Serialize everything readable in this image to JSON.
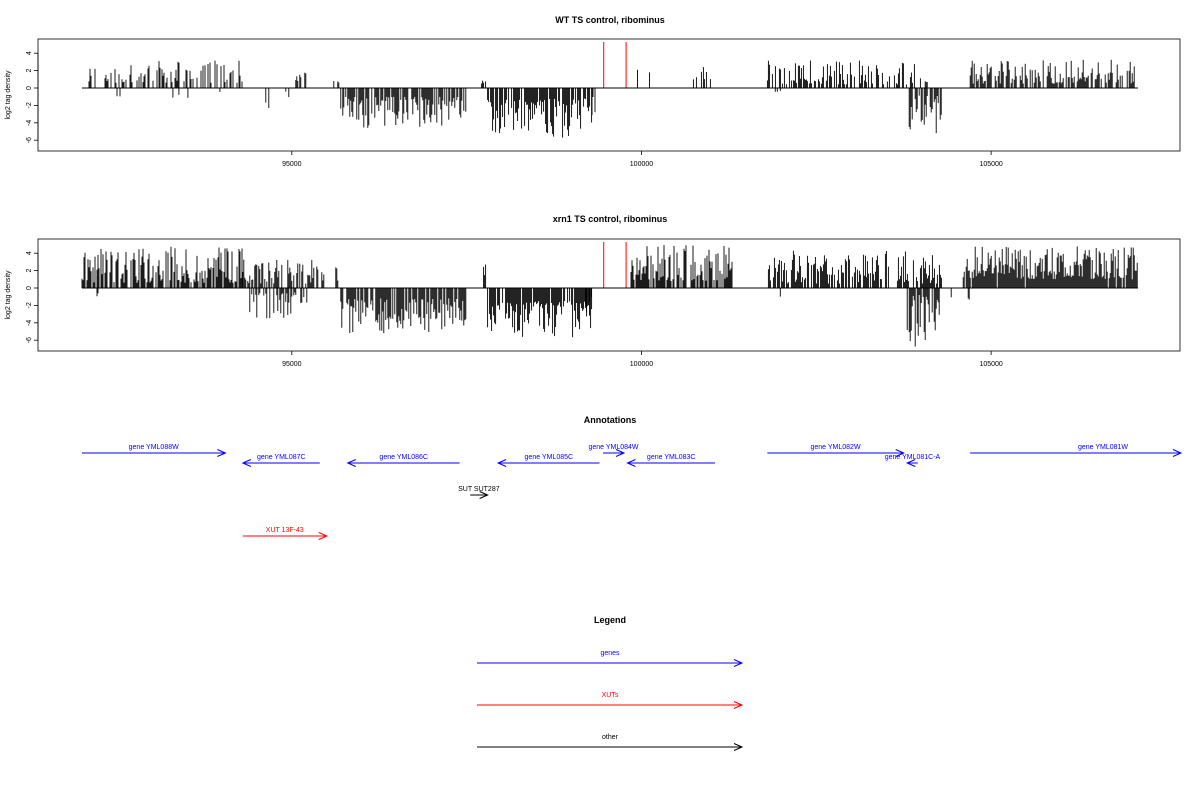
{
  "colors": {
    "gene": "#0000ff",
    "xut": "#ff0000",
    "other": "#000000",
    "marker": "#ff0000",
    "trace": "#000000"
  },
  "chart_data": [
    {
      "type": "bar",
      "title": "WT TS control, ribominus",
      "ylabel": "log2 tag density",
      "xlim": [
        91300,
        107600
      ],
      "ylim": [
        -7,
        5.5
      ],
      "x_ticks": [
        "95000",
        "100000",
        "105000"
      ],
      "x_tick_values": [
        95000,
        100000,
        105000
      ],
      "y_ticks": [
        "4",
        "2",
        "0",
        "-2",
        "-4",
        "-6"
      ],
      "y_tick_values": [
        4,
        2,
        0,
        -2,
        -4,
        -6
      ],
      "markers_x": [
        99460,
        99780
      ],
      "segments": [
        {
          "start": 92000,
          "end": 92050,
          "sign": -1,
          "lo": 0.5,
          "hi": 1.2,
          "density": 0.2,
          "seed": 1
        },
        {
          "start": 92100,
          "end": 94300,
          "sign": 1,
          "lo": 0.6,
          "hi": 3.2,
          "density": 0.45,
          "seed": 2
        },
        {
          "start": 92500,
          "end": 92560,
          "sign": -1,
          "lo": 0.4,
          "hi": 1.0,
          "density": 0.3,
          "seed": 3
        },
        {
          "start": 93300,
          "end": 93560,
          "sign": -1,
          "lo": 0.4,
          "hi": 1.5,
          "density": 0.25,
          "seed": 4
        },
        {
          "start": 93900,
          "end": 94000,
          "sign": -1,
          "lo": 0.4,
          "hi": 1.1,
          "density": 0.3,
          "seed": 5
        },
        {
          "start": 94600,
          "end": 94700,
          "sign": -1,
          "lo": 1.0,
          "hi": 2.8,
          "density": 0.3,
          "seed": 6
        },
        {
          "start": 94900,
          "end": 95000,
          "sign": -1,
          "lo": 0.3,
          "hi": 1.2,
          "density": 0.3,
          "seed": 7
        },
        {
          "start": 94900,
          "end": 95300,
          "sign": 1,
          "lo": 0.8,
          "hi": 2.1,
          "density": 0.25,
          "seed": 8
        },
        {
          "start": 95600,
          "end": 95700,
          "sign": 1,
          "lo": 0.5,
          "hi": 1.0,
          "density": 0.3,
          "seed": 9
        },
        {
          "start": 95700,
          "end": 97500,
          "sign": -1,
          "lo": 1.0,
          "hi": 4.6,
          "density": 0.7,
          "seed": 10
        },
        {
          "start": 97700,
          "end": 97800,
          "sign": 1,
          "lo": 0.5,
          "hi": 1.0,
          "density": 0.4,
          "seed": 11
        },
        {
          "start": 97800,
          "end": 99300,
          "sign": -1,
          "lo": 1.2,
          "hi": 5.8,
          "density": 0.8,
          "seed": 12
        },
        {
          "start": 99250,
          "end": 99350,
          "sign": -1,
          "lo": 1.0,
          "hi": 3.5,
          "density": 0.4,
          "seed": 13
        },
        {
          "start": 99900,
          "end": 100150,
          "sign": 1,
          "lo": 0.8,
          "hi": 2.2,
          "density": 0.2,
          "seed": 14
        },
        {
          "start": 100700,
          "end": 101000,
          "sign": 1,
          "lo": 1.0,
          "hi": 2.5,
          "density": 0.2,
          "seed": 15
        },
        {
          "start": 101800,
          "end": 104000,
          "sign": 1,
          "lo": 0.4,
          "hi": 3.3,
          "density": 0.55,
          "seed": 16
        },
        {
          "start": 101900,
          "end": 102000,
          "sign": -1,
          "lo": 0.3,
          "hi": 0.8,
          "density": 0.3,
          "seed": 17
        },
        {
          "start": 103800,
          "end": 104300,
          "sign": -1,
          "lo": 0.8,
          "hi": 5.4,
          "density": 0.7,
          "seed": 18
        },
        {
          "start": 104000,
          "end": 104100,
          "sign": 1,
          "lo": 0.6,
          "hi": 1.2,
          "density": 0.3,
          "seed": 19
        },
        {
          "start": 104700,
          "end": 107100,
          "sign": 1,
          "lo": 0.5,
          "hi": 3.3,
          "density": 0.7,
          "seed": 20
        }
      ]
    },
    {
      "type": "bar",
      "title": "xrn1 TS control, ribominus",
      "ylabel": "log2 tag density",
      "xlim": [
        91300,
        107600
      ],
      "ylim": [
        -7,
        5.5
      ],
      "x_ticks": [
        "95000",
        "100000",
        "105000"
      ],
      "x_tick_values": [
        95000,
        100000,
        105000
      ],
      "y_ticks": [
        "4",
        "2",
        "0",
        "-2",
        "-4",
        "-6"
      ],
      "y_tick_values": [
        4,
        2,
        0,
        -2,
        -4,
        -6
      ],
      "markers_x": [
        99460,
        99780
      ],
      "segments": [
        {
          "start": 92000,
          "end": 94300,
          "sign": 1,
          "lo": 0.6,
          "hi": 4.8,
          "density": 0.75,
          "seed": 31
        },
        {
          "start": 92200,
          "end": 92300,
          "sign": -1,
          "lo": 0.6,
          "hi": 1.3,
          "density": 0.2,
          "seed": 32
        },
        {
          "start": 94400,
          "end": 95300,
          "sign": -1,
          "lo": 0.5,
          "hi": 3.6,
          "density": 0.6,
          "seed": 33
        },
        {
          "start": 94300,
          "end": 95500,
          "sign": 1,
          "lo": 0.5,
          "hi": 3.3,
          "density": 0.5,
          "seed": 34
        },
        {
          "start": 95600,
          "end": 95700,
          "sign": 1,
          "lo": 0.8,
          "hi": 2.5,
          "density": 0.3,
          "seed": 35
        },
        {
          "start": 95700,
          "end": 97500,
          "sign": -1,
          "lo": 1.2,
          "hi": 5.2,
          "density": 0.85,
          "seed": 36
        },
        {
          "start": 97600,
          "end": 97800,
          "sign": 1,
          "lo": 0.7,
          "hi": 2.8,
          "density": 0.4,
          "seed": 37
        },
        {
          "start": 97800,
          "end": 99300,
          "sign": -1,
          "lo": 1.5,
          "hi": 5.8,
          "density": 0.9,
          "seed": 38
        },
        {
          "start": 99200,
          "end": 99350,
          "sign": -1,
          "lo": 1.0,
          "hi": 3.8,
          "density": 0.4,
          "seed": 39
        },
        {
          "start": 99850,
          "end": 101300,
          "sign": 1,
          "lo": 0.8,
          "hi": 5.0,
          "density": 0.8,
          "seed": 40
        },
        {
          "start": 101800,
          "end": 104300,
          "sign": 1,
          "lo": 0.5,
          "hi": 4.3,
          "density": 0.7,
          "seed": 41
        },
        {
          "start": 101900,
          "end": 102000,
          "sign": -1,
          "lo": 0.5,
          "hi": 1.3,
          "density": 0.3,
          "seed": 42
        },
        {
          "start": 103800,
          "end": 104300,
          "sign": -1,
          "lo": 0.8,
          "hi": 6.8,
          "density": 0.8,
          "seed": 43
        },
        {
          "start": 104400,
          "end": 104500,
          "sign": -1,
          "lo": 0.5,
          "hi": 2.2,
          "density": 0.3,
          "seed": 44
        },
        {
          "start": 104600,
          "end": 104700,
          "sign": -1,
          "lo": 0.5,
          "hi": 1.8,
          "density": 0.3,
          "seed": 45
        },
        {
          "start": 104600,
          "end": 107100,
          "sign": 1,
          "lo": 1.0,
          "hi": 4.8,
          "density": 0.95,
          "seed": 46
        }
      ]
    }
  ],
  "annotations": {
    "title": "Annotations",
    "xlim": [
      91300,
      107600
    ],
    "features": [
      {
        "label": "gene YML088W",
        "kind": "gene",
        "start": 92000,
        "end": 94050,
        "strand": "+",
        "row": 0
      },
      {
        "label": "gene YML087C",
        "kind": "gene",
        "start": 94300,
        "end": 95400,
        "strand": "-",
        "row": 1
      },
      {
        "label": "gene YML086C",
        "kind": "gene",
        "start": 95800,
        "end": 97400,
        "strand": "-",
        "row": 1
      },
      {
        "label": "gene YML085C",
        "kind": "gene",
        "start": 97950,
        "end": 99400,
        "strand": "-",
        "row": 1
      },
      {
        "label": "gene YML084W",
        "kind": "gene",
        "start": 99450,
        "end": 99750,
        "strand": "+",
        "row": 0
      },
      {
        "label": "gene YML083C",
        "kind": "gene",
        "start": 99800,
        "end": 101050,
        "strand": "-",
        "row": 1
      },
      {
        "label": "gene YML082W",
        "kind": "gene",
        "start": 101800,
        "end": 103750,
        "strand": "+",
        "row": 0
      },
      {
        "label": "gene YML081C-A",
        "kind": "gene",
        "start": 103800,
        "end": 103950,
        "strand": "-",
        "row": 1
      },
      {
        "label": "gene YML081W",
        "kind": "gene",
        "start": 104700,
        "end": 108000,
        "strand": "+",
        "row": 0
      },
      {
        "label": "SUT SUT287",
        "kind": "other",
        "start": 97550,
        "end": 97800,
        "strand": "+",
        "row": 2
      },
      {
        "label": "XUT 13F-43",
        "kind": "xut",
        "start": 94300,
        "end": 95500,
        "strand": "+",
        "row": 3
      }
    ]
  },
  "legend": {
    "title": "Legend",
    "entries": [
      {
        "label": "genes",
        "kind": "gene"
      },
      {
        "label": "XUTs",
        "kind": "xut"
      },
      {
        "label": "other",
        "kind": "other"
      }
    ]
  }
}
